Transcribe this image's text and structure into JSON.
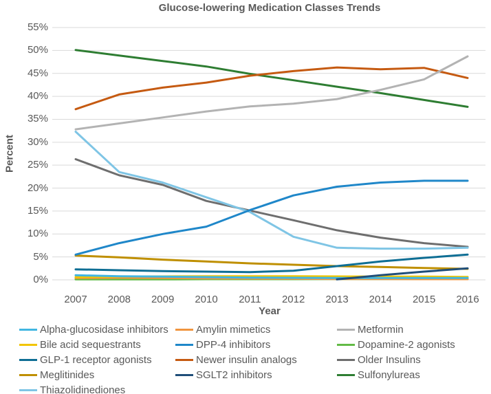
{
  "title": "Glucose-lowering Medication Classes Trends",
  "axes": {
    "y_label": "Percent",
    "x_label": "Year",
    "y_ticks": [
      "55%",
      "50%",
      "45%",
      "40%",
      "35%",
      "30%",
      "25%",
      "20%",
      "15%",
      "10%",
      "5%",
      "0%"
    ],
    "grid_color": "#D9D9D9",
    "text_color": "#595959"
  },
  "chart_data": {
    "type": "line",
    "title": "Glucose-lowering Medication Classes Trends",
    "xlabel": "Year",
    "ylabel": "Percent",
    "ylim": [
      0,
      55
    ],
    "grid": true,
    "legend_position": "bottom",
    "categories": [
      2007,
      2008,
      2009,
      2010,
      2011,
      2012,
      2013,
      2014,
      2015,
      2016
    ],
    "series": [
      {
        "name": "Alpha-glucosidase inhibitors",
        "color": "#41B6E1",
        "values": [
          1.0,
          0.8,
          0.7,
          0.6,
          0.5,
          0.45,
          0.4,
          0.4,
          0.4,
          0.4
        ]
      },
      {
        "name": "Amylin mimetics",
        "color": "#F0953F",
        "values": [
          0.4,
          0.45,
          0.4,
          0.35,
          0.3,
          0.25,
          0.2,
          0.2,
          0.15,
          0.15
        ]
      },
      {
        "name": "Metformin",
        "color": "#B3B3B3",
        "values": [
          32.8,
          34.1,
          35.4,
          36.7,
          37.8,
          38.4,
          39.4,
          41.4,
          43.7,
          48.7
        ]
      },
      {
        "name": "Bile acid sequestrants",
        "color": "#F2C500",
        "values": [
          0.6,
          0.7,
          0.75,
          0.8,
          0.8,
          0.8,
          0.75,
          0.7,
          0.7,
          0.65
        ]
      },
      {
        "name": "DPP-4 inhibitors",
        "color": "#1F87C9",
        "values": [
          5.5,
          8.0,
          10.0,
          11.6,
          15.2,
          18.4,
          20.3,
          21.2,
          21.6,
          21.6
        ]
      },
      {
        "name": "Dopamine-2 agonists",
        "color": "#62BB46",
        "values": [
          0.1,
          0.1,
          0.1,
          0.15,
          0.15,
          0.15,
          0.2,
          0.2,
          0.2,
          0.2
        ]
      },
      {
        "name": "GLP-1 receptor agonists",
        "color": "#0E6E94",
        "values": [
          2.3,
          2.1,
          1.9,
          1.8,
          1.7,
          2.0,
          3.0,
          4.0,
          4.8,
          5.5
        ]
      },
      {
        "name": "Newer insulin analogs",
        "color": "#C55A11",
        "values": [
          37.2,
          40.4,
          41.9,
          43.0,
          44.5,
          45.5,
          46.3,
          45.9,
          46.2,
          44.0
        ]
      },
      {
        "name": "Older Insulins",
        "color": "#6E6E6E",
        "values": [
          26.3,
          22.8,
          20.7,
          17.2,
          15.1,
          13.0,
          10.8,
          9.2,
          8.0,
          7.2
        ]
      },
      {
        "name": "Meglitinides",
        "color": "#BF8F00",
        "values": [
          5.3,
          4.9,
          4.4,
          4.0,
          3.6,
          3.3,
          3.0,
          2.8,
          2.6,
          2.4
        ]
      },
      {
        "name": "SGLT2 inhibitors",
        "color": "#1F4E79",
        "values": [
          null,
          null,
          null,
          null,
          null,
          null,
          0.1,
          1.0,
          1.8,
          2.5
        ]
      },
      {
        "name": "Sulfonylureas",
        "color": "#2E7D32",
        "values": [
          50.1,
          48.9,
          47.7,
          46.5,
          44.9,
          43.5,
          42.1,
          40.7,
          39.2,
          37.7
        ]
      },
      {
        "name": "Thiazolidinediones",
        "color": "#7FC5E5",
        "values": [
          32.3,
          23.5,
          21.2,
          18.0,
          14.8,
          9.4,
          7.0,
          6.8,
          6.8,
          7.0
        ]
      }
    ],
    "draw_order": [
      5,
      1,
      3,
      0,
      9,
      6,
      10,
      8,
      12,
      4,
      11,
      7,
      2
    ]
  }
}
